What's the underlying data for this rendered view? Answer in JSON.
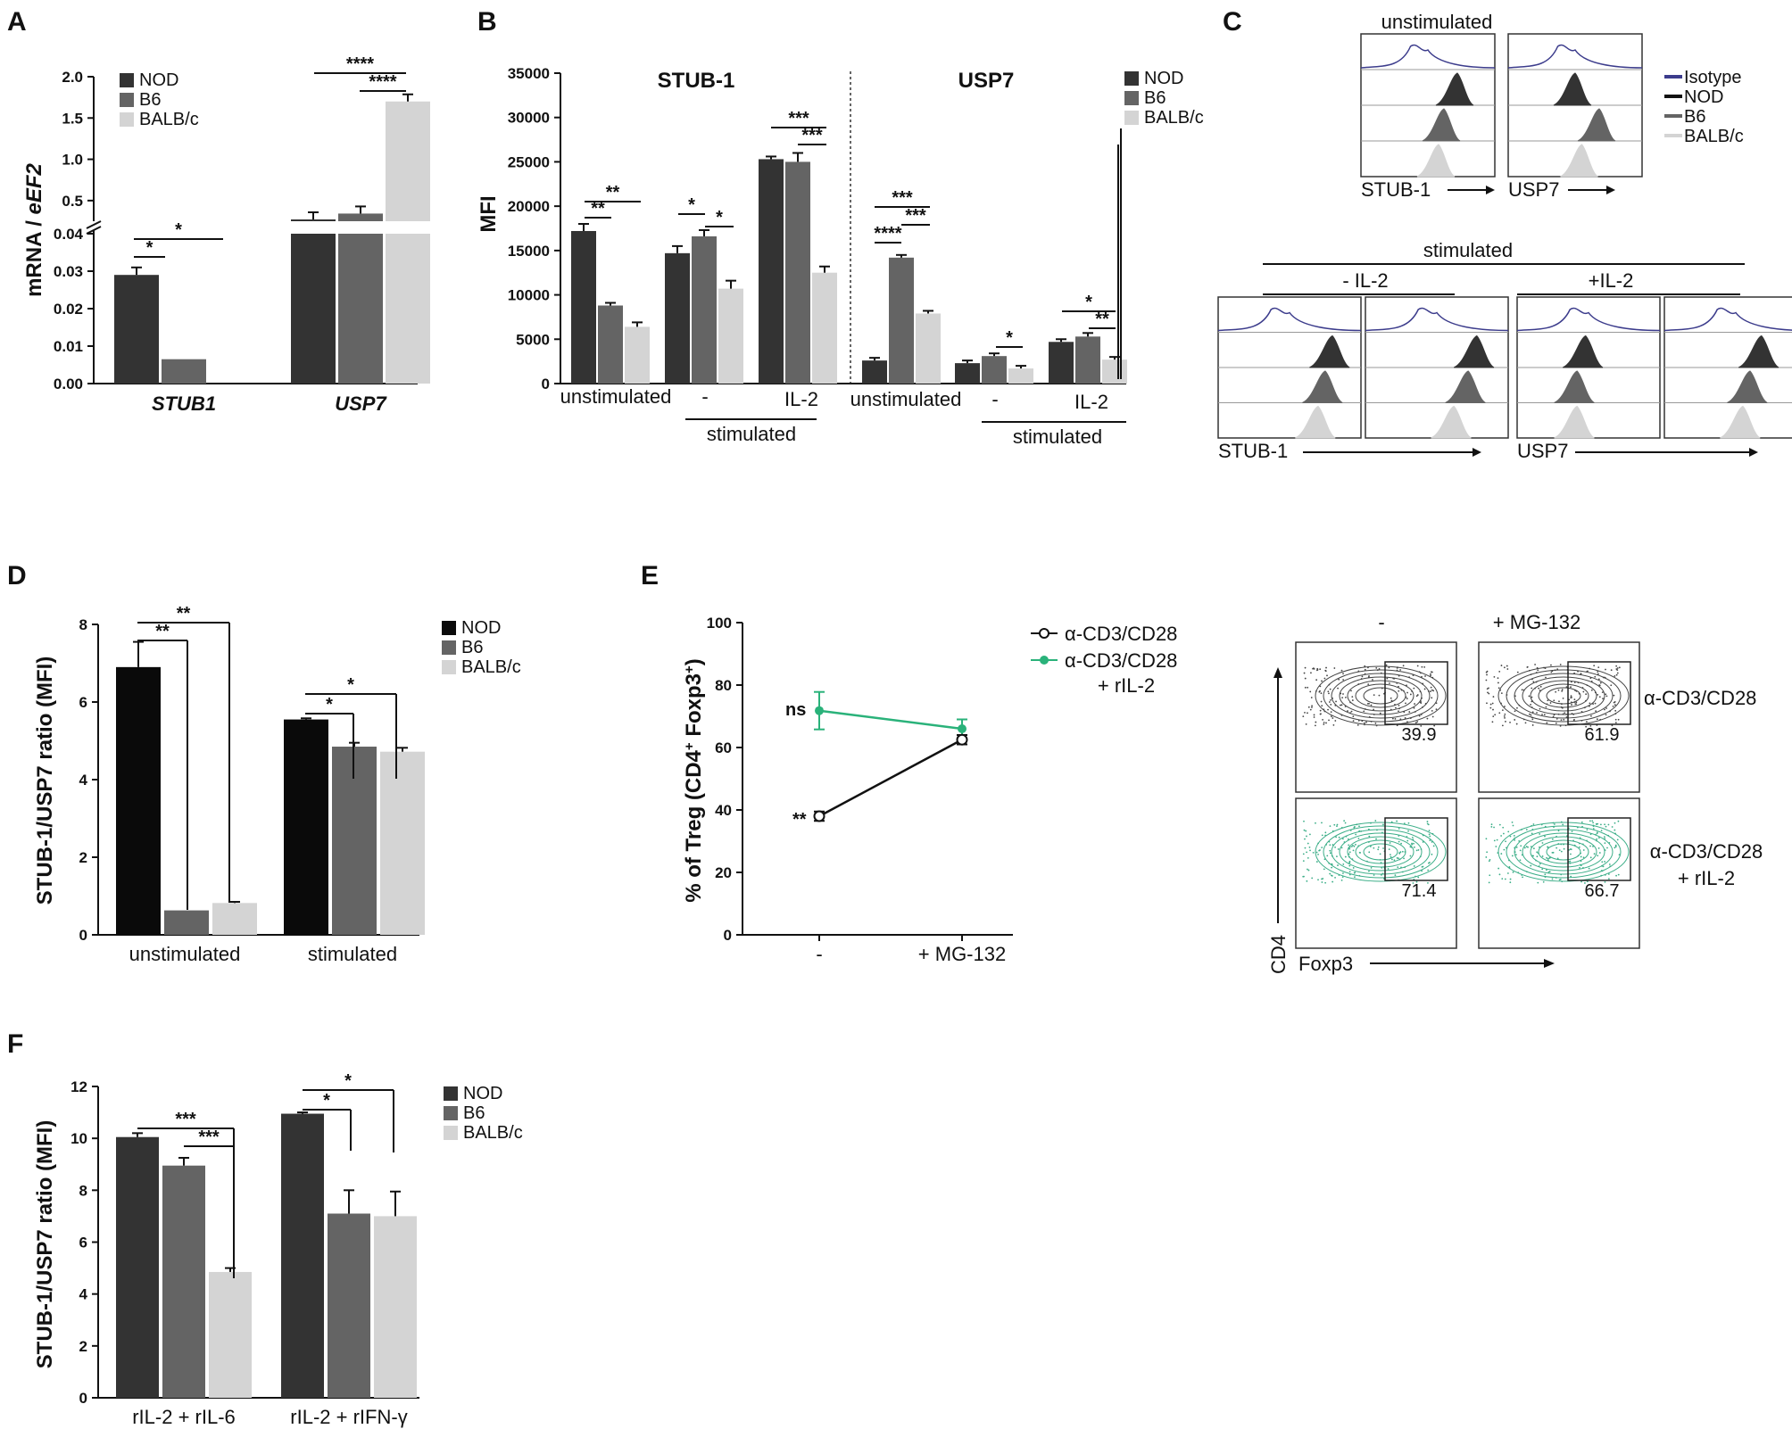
{
  "colors": {
    "NOD": "#333333",
    "B6": "#646464",
    "BALB/c": "#d4d4d4",
    "iso": "#3c3c8c",
    "green": "#2ab27a",
    "greenText": "#5aa67f"
  },
  "chart_data": [
    {
      "id": "A",
      "type": "bar",
      "panel_label": "A",
      "ylabel_pre": "mRNA / ",
      "ylabel_italic": "eEF2",
      "categories": [
        "STUB1",
        "USP7"
      ],
      "legend": [
        "NOD",
        "B6",
        "BALB/c"
      ],
      "series": [
        {
          "name": "NOD",
          "values": [
            0.029,
            0.041
          ],
          "err": [
            0.002,
            0.003
          ]
        },
        {
          "name": "B6",
          "values": [
            0.0065,
            0.22
          ],
          "err": [
            0,
            0.06
          ]
        },
        {
          "name": "BALB/c",
          "values": [
            0,
            1.7
          ],
          "err": [
            0,
            0.05
          ]
        }
      ],
      "lower_ticks": [
        "0.00",
        "0.01",
        "0.02",
        "0.03",
        "0.04"
      ],
      "upper_ticks": [
        "0.5",
        "1.0",
        "1.5",
        "2.0"
      ],
      "broken_axis": true,
      "significance": [
        "*",
        "*",
        "****",
        "****"
      ]
    },
    {
      "id": "B",
      "type": "bar",
      "panel_label": "B",
      "ylabel": "MFI",
      "yticks": [
        "0",
        "5000",
        "10000",
        "15000",
        "20000",
        "25000",
        "30000",
        "35000"
      ],
      "ylim": [
        0,
        35000
      ],
      "legend": [
        "NOD",
        "B6",
        "BALB/c"
      ],
      "titles": [
        "STUB-1",
        "USP7"
      ],
      "categories": [
        "unstimulated",
        "-",
        "IL-2",
        "unstimulated",
        "-",
        "IL-2"
      ],
      "group_label": "stimulated",
      "series": [
        {
          "name": "NOD",
          "values": [
            17200,
            14700,
            25300,
            2600,
            2300,
            4700
          ],
          "err": [
            600,
            600,
            100,
            100,
            100,
            100
          ]
        },
        {
          "name": "B6",
          "values": [
            8800,
            16600,
            25000,
            14200,
            3100,
            5300
          ],
          "err": [
            100,
            500,
            800,
            100,
            100,
            200
          ]
        },
        {
          "name": "BALB/c",
          "values": [
            6400,
            10700,
            12500,
            7900,
            1700,
            2700
          ],
          "err": [
            300,
            700,
            500,
            100,
            100,
            100
          ]
        }
      ],
      "significance": [
        "**",
        "**",
        "*",
        "*",
        "***",
        "***",
        "***",
        "***",
        "****",
        "*",
        "*",
        "**"
      ]
    },
    {
      "id": "D",
      "type": "bar",
      "panel_label": "D",
      "ylabel": "STUB-1/USP7 ratio (MFI)",
      "yticks": [
        "0",
        "2",
        "4",
        "6",
        "8"
      ],
      "ylim": [
        0,
        8
      ],
      "categories": [
        "unstimulated",
        "stimulated"
      ],
      "legend": [
        "NOD",
        "B6",
        "BALB/c"
      ],
      "series": [
        {
          "name": "NOD",
          "values": [
            6.9,
            5.55
          ],
          "err": [
            0.65,
            0.03
          ]
        },
        {
          "name": "B6",
          "values": [
            0.63,
            4.85
          ],
          "err": [
            0,
            0.1
          ]
        },
        {
          "name": "BALB/c",
          "values": [
            0.82,
            4.72
          ],
          "err": [
            0.03,
            0.1
          ]
        }
      ],
      "significance": [
        "**",
        "**",
        "*",
        "*"
      ]
    },
    {
      "id": "E",
      "type": "line",
      "panel_label": "E",
      "ylabel_main": "% of Treg (CD4",
      "ylabel_sup1": "+",
      "ylabel_mid": " Foxp3",
      "ylabel_sup2": "+",
      "ylabel_end": ")",
      "yticks": [
        "0",
        "20",
        "40",
        "60",
        "80",
        "100"
      ],
      "ylim": [
        0,
        100
      ],
      "categories": [
        "-",
        "+ MG-132"
      ],
      "series": [
        {
          "name": "α-CD3/CD28",
          "values": [
            38,
            62.5
          ],
          "err": [
            1.5,
            1.5
          ]
        },
        {
          "name": "α-CD3/CD28",
          "name2": "+ rIL-2",
          "values": [
            71.8,
            66
          ],
          "err": [
            6,
            3
          ]
        }
      ],
      "annotations": [
        "**",
        "ns"
      ]
    },
    {
      "id": "F",
      "type": "bar",
      "panel_label": "F",
      "ylabel": "STUB-1/USP7 ratio (MFI)",
      "yticks": [
        "0",
        "2",
        "4",
        "6",
        "8",
        "10",
        "12"
      ],
      "ylim": [
        0,
        12
      ],
      "categories": [
        "rIL-2 + rIL-6",
        "rIL-2 + rIFN-γ"
      ],
      "legend": [
        "NOD",
        "B6",
        "BALB/c"
      ],
      "series": [
        {
          "name": "NOD",
          "values": [
            10.05,
            10.95
          ],
          "err": [
            0.15,
            0.05
          ]
        },
        {
          "name": "B6",
          "values": [
            8.95,
            7.1
          ],
          "err": [
            0.3,
            0.9
          ]
        },
        {
          "name": "BALB/c",
          "values": [
            4.85,
            7.0
          ],
          "err": [
            0.15,
            0.95
          ]
        }
      ],
      "significance": [
        "***",
        "***",
        "*",
        "*"
      ]
    }
  ],
  "panel_c": {
    "label": "C",
    "top_title": "unstimulated",
    "stim_title": "stimulated",
    "minus_il2": "- IL-2",
    "plus_il2": "+IL-2",
    "axis1": "STUB-1",
    "axis2": "USP7",
    "legend": [
      "Isotype",
      "NOD",
      "B6",
      "BALB/c"
    ]
  },
  "panel_e_flow": {
    "col1": "-",
    "col2": "+ MG-132",
    "row1": "α-CD3/CD28",
    "row2a": "α-CD3/CD28",
    "row2b": "+ rIL-2",
    "xaxis": "Foxp3",
    "yaxis": "CD4",
    "gates": [
      "39.9",
      "61.9",
      "71.4",
      "66.7"
    ]
  }
}
